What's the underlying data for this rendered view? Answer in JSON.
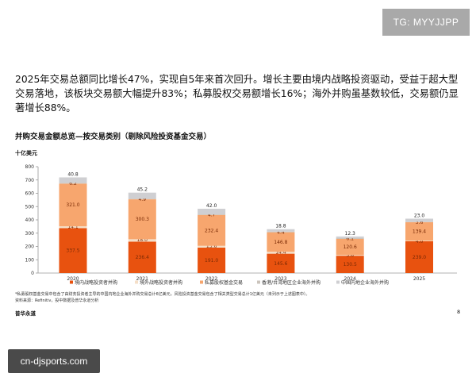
{
  "watermark_top": "TG: MYYJJPP",
  "watermark_bottom": "cn-djsports.com",
  "paragraph": "2025年交易总额同比增长47%，实现自5年来首次回升。增长主要由境内战略投资驱动，受益于超大型交易落地，该板块交易额大幅提升83%；私募股权交易额增长16%；海外并购虽基数较低，交易额仍显著增长88%。",
  "footnote": "*私募股权基金交易中包含了由财务投资者主导的中国内地企业海外并购交易总计6亿美元，风险投资基金交易包含了相关类型交易总计1亿美元（未列示于上述图表中）。",
  "source": "资料来源：Refinitiv，投中数据及普华永道分析",
  "brand": "普华永道",
  "page_number": "8",
  "chart_data": {
    "type": "bar",
    "stacked": true,
    "title": "并购交易金额总览—按交易类别（剔除风险投资基金交易）",
    "ylabel": "十亿美元",
    "ylim": [
      0,
      800
    ],
    "yticks": [
      "0",
      "100",
      "200",
      "300",
      "400",
      "500",
      "600",
      "700",
      "800"
    ],
    "grid": false,
    "legend": "bottom",
    "categories": [
      "2020",
      "2021",
      "2022",
      "2023",
      "2024",
      "2025"
    ],
    "series": [
      {
        "name": "境内战略投资者并购",
        "color": "#e8520f",
        "values": [
          337.5,
          236.4,
          191.0,
          145.6,
          130.5,
          239.0
        ],
        "labels": [
          "337.5",
          "236.4",
          "191.0",
          "145.6",
          "130.5",
          "239.0"
        ]
      },
      {
        "name": "境外战略投资者并购",
        "color": "#f5dfc8",
        "values": [
          14.1,
          18.0,
          13.6,
          14.4,
          5.6,
          4.0
        ],
        "labels": [
          "14.1",
          "18.0",
          "13.6",
          "14.4",
          "5.6",
          "4.0"
        ]
      },
      {
        "name": "私募股权基金交易",
        "color": "#f7a66e",
        "values": [
          321.0,
          300.3,
          232.4,
          146.8,
          120.6,
          139.4
        ],
        "labels": [
          "321.0",
          "300.3",
          "232.4",
          "146.8",
          "120.6",
          "139.4"
        ]
      },
      {
        "name": "香港/台湾地区企业海外并购",
        "color": "#cbc4bc",
        "values": [
          6.2,
          4.9,
          4.7,
          4.4,
          6.1,
          3.6
        ],
        "labels": [
          "6.2",
          "4.9",
          "4.7",
          "4.4",
          "6.1",
          "3.6"
        ]
      },
      {
        "name": "中国内地企业海外并购",
        "color": "#cfcfd2",
        "values": [
          40.8,
          45.2,
          42.0,
          18.8,
          12.3,
          23.0
        ],
        "labels": [
          "40.8",
          "45.2",
          "42.0",
          "18.8",
          "12.3",
          "23.0"
        ]
      }
    ]
  }
}
